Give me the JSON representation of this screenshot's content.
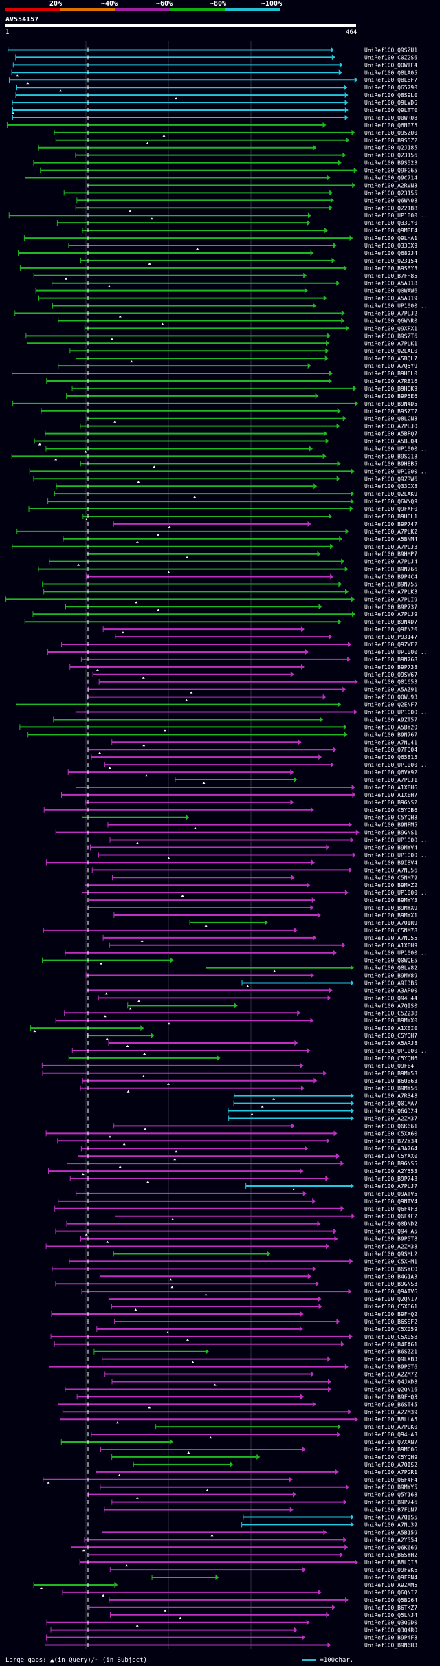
{
  "legend": {
    "labels": [
      "20%",
      "~40%",
      "~60%",
      "~80%",
      "~100%"
    ],
    "colors": [
      "#e00000",
      "#e07000",
      "#a020a0",
      "#10b010",
      "#20c0d0"
    ]
  },
  "query": {
    "name": "AV554157",
    "start": "1",
    "end": "464"
  },
  "footer": {
    "text": "Large gaps: ▲(in Query)/~ (in Subject)",
    "scale": "=100char."
  },
  "chart_data": {
    "type": "alignment",
    "query_length": 464,
    "hits": [
      {
        "id": "UniRef100_Q9SZU1",
        "color": "cyan"
      },
      {
        "id": "UniRef100_C0Z2S6",
        "color": "cyan"
      },
      {
        "id": "UniRef100_Q0WTF4",
        "color": "cyan"
      },
      {
        "id": "UniRef100_Q8LA05",
        "color": "cyan"
      },
      {
        "id": "UniRef100_Q8LBF7",
        "color": "cyan"
      },
      {
        "id": "UniRef100_Q65790",
        "color": "cyan"
      },
      {
        "id": "UniRef100_Q8S9L0",
        "color": "cyan"
      },
      {
        "id": "UniRef100_Q9LVD6",
        "color": "cyan"
      },
      {
        "id": "UniRef100_Q9LTT0",
        "color": "cyan"
      },
      {
        "id": "UniRef100_Q0WR08",
        "color": "cyan"
      },
      {
        "id": "UniRef100_Q6N075",
        "color": "green"
      },
      {
        "id": "UniRef100_Q9SZU0",
        "color": "green"
      },
      {
        "id": "UniRef100_B9S5Z2",
        "color": "green"
      },
      {
        "id": "UniRef100_Q2J185",
        "color": "green"
      },
      {
        "id": "UniRef100_Q23156",
        "color": "green"
      },
      {
        "id": "UniRef100_B9S523",
        "color": "green"
      },
      {
        "id": "UniRef100_Q9FG65",
        "color": "green"
      },
      {
        "id": "UniRef100_Q9C714",
        "color": "green"
      },
      {
        "id": "UniRef100_A2RVN3",
        "color": "green"
      },
      {
        "id": "UniRef100_Q23155",
        "color": "green"
      },
      {
        "id": "UniRef100_Q6WN08",
        "color": "green"
      },
      {
        "id": "UniRef100_Q22188",
        "color": "green"
      },
      {
        "id": "UniRef100_UP1000...",
        "color": "green"
      },
      {
        "id": "UniRef100_Q33DY0",
        "color": "green"
      },
      {
        "id": "UniRef100_Q9MBE4",
        "color": "green"
      },
      {
        "id": "UniRef100_Q9LHA1",
        "color": "green"
      },
      {
        "id": "UniRef100_Q33DX9",
        "color": "green"
      },
      {
        "id": "UniRef100_Q682J4",
        "color": "green"
      },
      {
        "id": "UniRef100_Q23154",
        "color": "green"
      },
      {
        "id": "UniRef100_B9SBY3",
        "color": "green"
      },
      {
        "id": "UniRef100_B7FH85",
        "color": "green"
      },
      {
        "id": "UniRef100_A5AJ18",
        "color": "green"
      },
      {
        "id": "UniRef100_Q0WAW6",
        "color": "green"
      },
      {
        "id": "UniRef100_A5AJ19",
        "color": "green"
      },
      {
        "id": "UniRef100_UP1000...",
        "color": "green"
      },
      {
        "id": "UniRef100_A7PLJ2",
        "color": "green"
      },
      {
        "id": "UniRef100_Q6WNR0",
        "color": "green"
      },
      {
        "id": "UniRef100_Q9XFX1",
        "color": "green"
      },
      {
        "id": "UniRef100_B9SZT6",
        "color": "green"
      },
      {
        "id": "UniRef100_A7PLK1",
        "color": "green"
      },
      {
        "id": "UniRef100_Q2LAL0",
        "color": "green"
      },
      {
        "id": "UniRef100_A5BQL7",
        "color": "green"
      },
      {
        "id": "UniRef100_A7Q5Y9",
        "color": "green"
      },
      {
        "id": "UniRef100_B9H6L0",
        "color": "green"
      },
      {
        "id": "UniRef100_A7R816",
        "color": "green"
      },
      {
        "id": "UniRef100_B9H6K9",
        "color": "green"
      },
      {
        "id": "UniRef100_B9P5E6",
        "color": "green"
      },
      {
        "id": "UniRef100_B9N4D5",
        "color": "green"
      },
      {
        "id": "UniRef100_B9SZT7",
        "color": "green"
      },
      {
        "id": "UniRef100_Q8LCN8",
        "color": "green"
      },
      {
        "id": "UniRef100_A7PLJ0",
        "color": "green"
      },
      {
        "id": "UniRef100_A5BFQ7",
        "color": "green"
      },
      {
        "id": "UniRef100_A5BUQ4",
        "color": "green"
      },
      {
        "id": "UniRef100_UP1000...",
        "color": "green"
      },
      {
        "id": "UniRef100_B9SG18",
        "color": "green"
      },
      {
        "id": "UniRef100_B9HEB5",
        "color": "green"
      },
      {
        "id": "UniRef100_UP1000...",
        "color": "green"
      },
      {
        "id": "UniRef100_Q9ZRW6",
        "color": "green"
      },
      {
        "id": "UniRef100_Q33DX8",
        "color": "green"
      },
      {
        "id": "UniRef100_Q2LAK9",
        "color": "green"
      },
      {
        "id": "UniRef100_Q6WNQ9",
        "color": "green"
      },
      {
        "id": "UniRef100_Q9FXF0",
        "color": "green"
      },
      {
        "id": "UniRef100_B9H6L1",
        "color": "green"
      },
      {
        "id": "UniRef100_B9P747",
        "color": "magenta"
      },
      {
        "id": "UniRef100_A7PLK2",
        "color": "green"
      },
      {
        "id": "UniRef100_A5BNM4",
        "color": "green"
      },
      {
        "id": "UniRef100_A7PLJ3",
        "color": "green"
      },
      {
        "id": "UniRef100_B9HMP7",
        "color": "green"
      },
      {
        "id": "UniRef100_A7PLJ4",
        "color": "green"
      },
      {
        "id": "UniRef100_B9N766",
        "color": "green"
      },
      {
        "id": "UniRef100_B9P4C4",
        "color": "magenta"
      },
      {
        "id": "UniRef100_B9N755",
        "color": "green"
      },
      {
        "id": "UniRef100_A7PLK3",
        "color": "green"
      },
      {
        "id": "UniRef100_A7PLI9",
        "color": "green"
      },
      {
        "id": "UniRef100_B9P737",
        "color": "green"
      },
      {
        "id": "UniRef100_A7PLJ9",
        "color": "green"
      },
      {
        "id": "UniRef100_B9N4D7",
        "color": "green"
      },
      {
        "id": "UniRef100_Q9FN20",
        "color": "magenta"
      },
      {
        "id": "UniRef100_P93147",
        "color": "magenta"
      },
      {
        "id": "UniRef100_Q9ZWF2",
        "color": "magenta"
      },
      {
        "id": "UniRef100_UP1000...",
        "color": "magenta"
      },
      {
        "id": "UniRef100_B9N768",
        "color": "magenta"
      },
      {
        "id": "UniRef100_B9P738",
        "color": "magenta"
      },
      {
        "id": "UniRef100_Q9SW67",
        "color": "magenta"
      },
      {
        "id": "UniRef100_Q81653",
        "color": "magenta"
      },
      {
        "id": "UniRef100_A5AZ91",
        "color": "magenta"
      },
      {
        "id": "UniRef100_Q0WU93",
        "color": "magenta"
      },
      {
        "id": "UniRef100_Q2ENF7",
        "color": "green"
      },
      {
        "id": "UniRef100_UP1000...",
        "color": "magenta"
      },
      {
        "id": "UniRef100_A9ZT57",
        "color": "green"
      },
      {
        "id": "UniRef100_A5BY20",
        "color": "green"
      },
      {
        "id": "UniRef100_B9N767",
        "color": "green"
      },
      {
        "id": "UniRef100_A7NU41",
        "color": "magenta"
      },
      {
        "id": "UniRef100_Q7FQ04",
        "color": "magenta"
      },
      {
        "id": "UniRef100_Q65815",
        "color": "magenta"
      },
      {
        "id": "UniRef100_UP1000...",
        "color": "magenta"
      },
      {
        "id": "UniRef100_Q6VX92",
        "color": "magenta"
      },
      {
        "id": "UniRef100_A7PLJ1",
        "color": "green"
      },
      {
        "id": "UniRef100_A1XEH6",
        "color": "magenta"
      },
      {
        "id": "UniRef100_A1XEH7",
        "color": "magenta"
      },
      {
        "id": "UniRef100_B9GNS2",
        "color": "magenta"
      },
      {
        "id": "UniRef100_C5YDB6",
        "color": "magenta"
      },
      {
        "id": "UniRef100_C5YQH8",
        "color": "green"
      },
      {
        "id": "UniRef100_B9NFM5",
        "color": "magenta"
      },
      {
        "id": "UniRef100_B9GNS1",
        "color": "magenta"
      },
      {
        "id": "UniRef100_UP1000...",
        "color": "magenta"
      },
      {
        "id": "UniRef100_B9MYV4",
        "color": "magenta"
      },
      {
        "id": "UniRef100_UP1000...",
        "color": "magenta"
      },
      {
        "id": "UniRef100_B9IBV4",
        "color": "magenta"
      },
      {
        "id": "UniRef100_A7NU56",
        "color": "magenta"
      },
      {
        "id": "UniRef100_C5NM79",
        "color": "magenta"
      },
      {
        "id": "UniRef100_B9MXZ2",
        "color": "magenta"
      },
      {
        "id": "UniRef100_UP1000...",
        "color": "magenta"
      },
      {
        "id": "UniRef100_B9MYY3",
        "color": "magenta"
      },
      {
        "id": "UniRef100_B9MYX9",
        "color": "magenta"
      },
      {
        "id": "UniRef100_B9MYX1",
        "color": "magenta"
      },
      {
        "id": "UniRef100_A7QIR9",
        "color": "green"
      },
      {
        "id": "UniRef100_C5NM78",
        "color": "magenta"
      },
      {
        "id": "UniRef100_A7NU55",
        "color": "magenta"
      },
      {
        "id": "UniRef100_A1XEH9",
        "color": "magenta"
      },
      {
        "id": "UniRef100_UP1000...",
        "color": "magenta"
      },
      {
        "id": "UniRef100_Q0WQE5",
        "color": "green"
      },
      {
        "id": "UniRef100_Q8LV82",
        "color": "green"
      },
      {
        "id": "UniRef100_B9MW89",
        "color": "magenta"
      },
      {
        "id": "UniRef100_A9I3B5",
        "color": "cyan"
      },
      {
        "id": "UniRef100_A3AP00",
        "color": "magenta"
      },
      {
        "id": "UniRef100_Q94H44",
        "color": "magenta"
      },
      {
        "id": "UniRef100_A7QIS0",
        "color": "green"
      },
      {
        "id": "UniRef100_C5Z238",
        "color": "magenta"
      },
      {
        "id": "UniRef100_B9MYX0",
        "color": "magenta"
      },
      {
        "id": "UniRef100_A1XEI0",
        "color": "green"
      },
      {
        "id": "UniRef100_C5YQH7",
        "color": "green"
      },
      {
        "id": "UniRef100_A5ARJ8",
        "color": "magenta"
      },
      {
        "id": "UniRef100_UP1000...",
        "color": "magenta"
      },
      {
        "id": "UniRef100_C5YQH6",
        "color": "green"
      },
      {
        "id": "UniRef100_Q9FE4",
        "color": "magenta"
      },
      {
        "id": "UniRef100_B9MY53",
        "color": "magenta"
      },
      {
        "id": "UniRef100_B6UB63",
        "color": "magenta"
      },
      {
        "id": "UniRef100_B9MY56",
        "color": "magenta"
      },
      {
        "id": "UniRef100_A7R348",
        "color": "cyan"
      },
      {
        "id": "UniRef100_Q01MA7",
        "color": "cyan"
      },
      {
        "id": "UniRef100_Q6GD24",
        "color": "cyan"
      },
      {
        "id": "UniRef100_A2ZM37",
        "color": "cyan"
      },
      {
        "id": "UniRef100_Q6K661",
        "color": "magenta"
      },
      {
        "id": "UniRef100_C5XX60",
        "color": "magenta"
      },
      {
        "id": "UniRef100_B7ZY34",
        "color": "magenta"
      },
      {
        "id": "UniRef100_A3A764",
        "color": "magenta"
      },
      {
        "id": "UniRef100_C5YXX0",
        "color": "magenta"
      },
      {
        "id": "UniRef100_B9GNS5",
        "color": "magenta"
      },
      {
        "id": "UniRef100_A2Y553",
        "color": "magenta"
      },
      {
        "id": "UniRef100_B9P743",
        "color": "magenta"
      },
      {
        "id": "UniRef100_A7PLJ7",
        "color": "cyan"
      },
      {
        "id": "UniRef100_Q9ATV5",
        "color": "magenta"
      },
      {
        "id": "UniRef100_Q9NTV4",
        "color": "magenta"
      },
      {
        "id": "UniRef100_Q6F4F3",
        "color": "magenta"
      },
      {
        "id": "UniRef100_Q6F4F2",
        "color": "magenta"
      },
      {
        "id": "UniRef100_Q0DND2",
        "color": "magenta"
      },
      {
        "id": "UniRef100_Q94HA5",
        "color": "magenta"
      },
      {
        "id": "UniRef100_B9P5T8",
        "color": "magenta"
      },
      {
        "id": "UniRef100_A2ZM38",
        "color": "magenta"
      },
      {
        "id": "UniRef100_Q9SML2",
        "color": "green"
      },
      {
        "id": "UniRef100_C5XHM1",
        "color": "magenta"
      },
      {
        "id": "UniRef100_B6SYC0",
        "color": "magenta"
      },
      {
        "id": "UniRef100_B4G1A3",
        "color": "magenta"
      },
      {
        "id": "UniRef100_B9GNS3",
        "color": "magenta"
      },
      {
        "id": "UniRef100_Q9ATV6",
        "color": "magenta"
      },
      {
        "id": "UniRef100_Q2QN17",
        "color": "magenta"
      },
      {
        "id": "UniRef100_C5X661",
        "color": "magenta"
      },
      {
        "id": "UniRef100_B9FHQ2",
        "color": "magenta"
      },
      {
        "id": "UniRef100_B6SSF2",
        "color": "magenta"
      },
      {
        "id": "UniRef100_C5X059",
        "color": "magenta"
      },
      {
        "id": "UniRef100_C5X058",
        "color": "magenta"
      },
      {
        "id": "UniRef100_B4FA61",
        "color": "magenta"
      },
      {
        "id": "UniRef100_B6SZ21",
        "color": "green"
      },
      {
        "id": "UniRef100_Q9LXB3",
        "color": "magenta"
      },
      {
        "id": "UniRef100_B9P5T6",
        "color": "magenta"
      },
      {
        "id": "UniRef100_A2ZM72",
        "color": "magenta"
      },
      {
        "id": "UniRef100_Q4JXD3",
        "color": "magenta"
      },
      {
        "id": "UniRef100_Q2QN16",
        "color": "magenta"
      },
      {
        "id": "UniRef100_B9FHQ3",
        "color": "magenta"
      },
      {
        "id": "UniRef100_B6ST45",
        "color": "magenta"
      },
      {
        "id": "UniRef100_A2ZM39",
        "color": "magenta"
      },
      {
        "id": "UniRef100_B8LLA5",
        "color": "magenta"
      },
      {
        "id": "UniRef100_A7PLK0",
        "color": "green"
      },
      {
        "id": "UniRef100_Q94HA3",
        "color": "magenta"
      },
      {
        "id": "UniRef100_Q7XXN7",
        "color": "green"
      },
      {
        "id": "UniRef100_B9MC06",
        "color": "magenta"
      },
      {
        "id": "UniRef100_C5YQH9",
        "color": "green"
      },
      {
        "id": "UniRef100_A7QIS2",
        "color": "green"
      },
      {
        "id": "UniRef100_A7PGR1",
        "color": "magenta"
      },
      {
        "id": "UniRef100_Q6F4F4",
        "color": "magenta"
      },
      {
        "id": "UniRef100_B9MYY5",
        "color": "magenta"
      },
      {
        "id": "UniRef100_Q5Y168",
        "color": "magenta"
      },
      {
        "id": "UniRef100_B9P746",
        "color": "magenta"
      },
      {
        "id": "UniRef100_B7FLN7",
        "color": "magenta"
      },
      {
        "id": "UniRef100_A7QIS5",
        "color": "cyan"
      },
      {
        "id": "UniRef100_A7NU39",
        "color": "cyan"
      },
      {
        "id": "UniRef100_A5B159",
        "color": "magenta"
      },
      {
        "id": "UniRef100_A2Y554",
        "color": "magenta"
      },
      {
        "id": "UniRef100_Q6K669",
        "color": "magenta"
      },
      {
        "id": "UniRef100_B6SYH2",
        "color": "magenta"
      },
      {
        "id": "UniRef100_B8LQI3",
        "color": "magenta"
      },
      {
        "id": "UniRef100_Q9FVK6",
        "color": "magenta"
      },
      {
        "id": "UniRef100_Q9FPN4",
        "color": "green"
      },
      {
        "id": "UniRef100_A9ZMM5",
        "color": "green"
      },
      {
        "id": "UniRef100_Q6QNI2",
        "color": "magenta"
      },
      {
        "id": "UniRef100_Q5BG64",
        "color": "magenta"
      },
      {
        "id": "UniRef100_B6TKZ7",
        "color": "magenta"
      },
      {
        "id": "UniRef100_Q5LNJ4",
        "color": "magenta"
      },
      {
        "id": "UniRef100_Q3Q9D0",
        "color": "magenta"
      },
      {
        "id": "UniRef100_Q3Q4R0",
        "color": "magenta"
      },
      {
        "id": "UniRef100_B9P4F8",
        "color": "magenta"
      },
      {
        "id": "UniRef100_B9N6H3",
        "color": "magenta"
      }
    ]
  }
}
